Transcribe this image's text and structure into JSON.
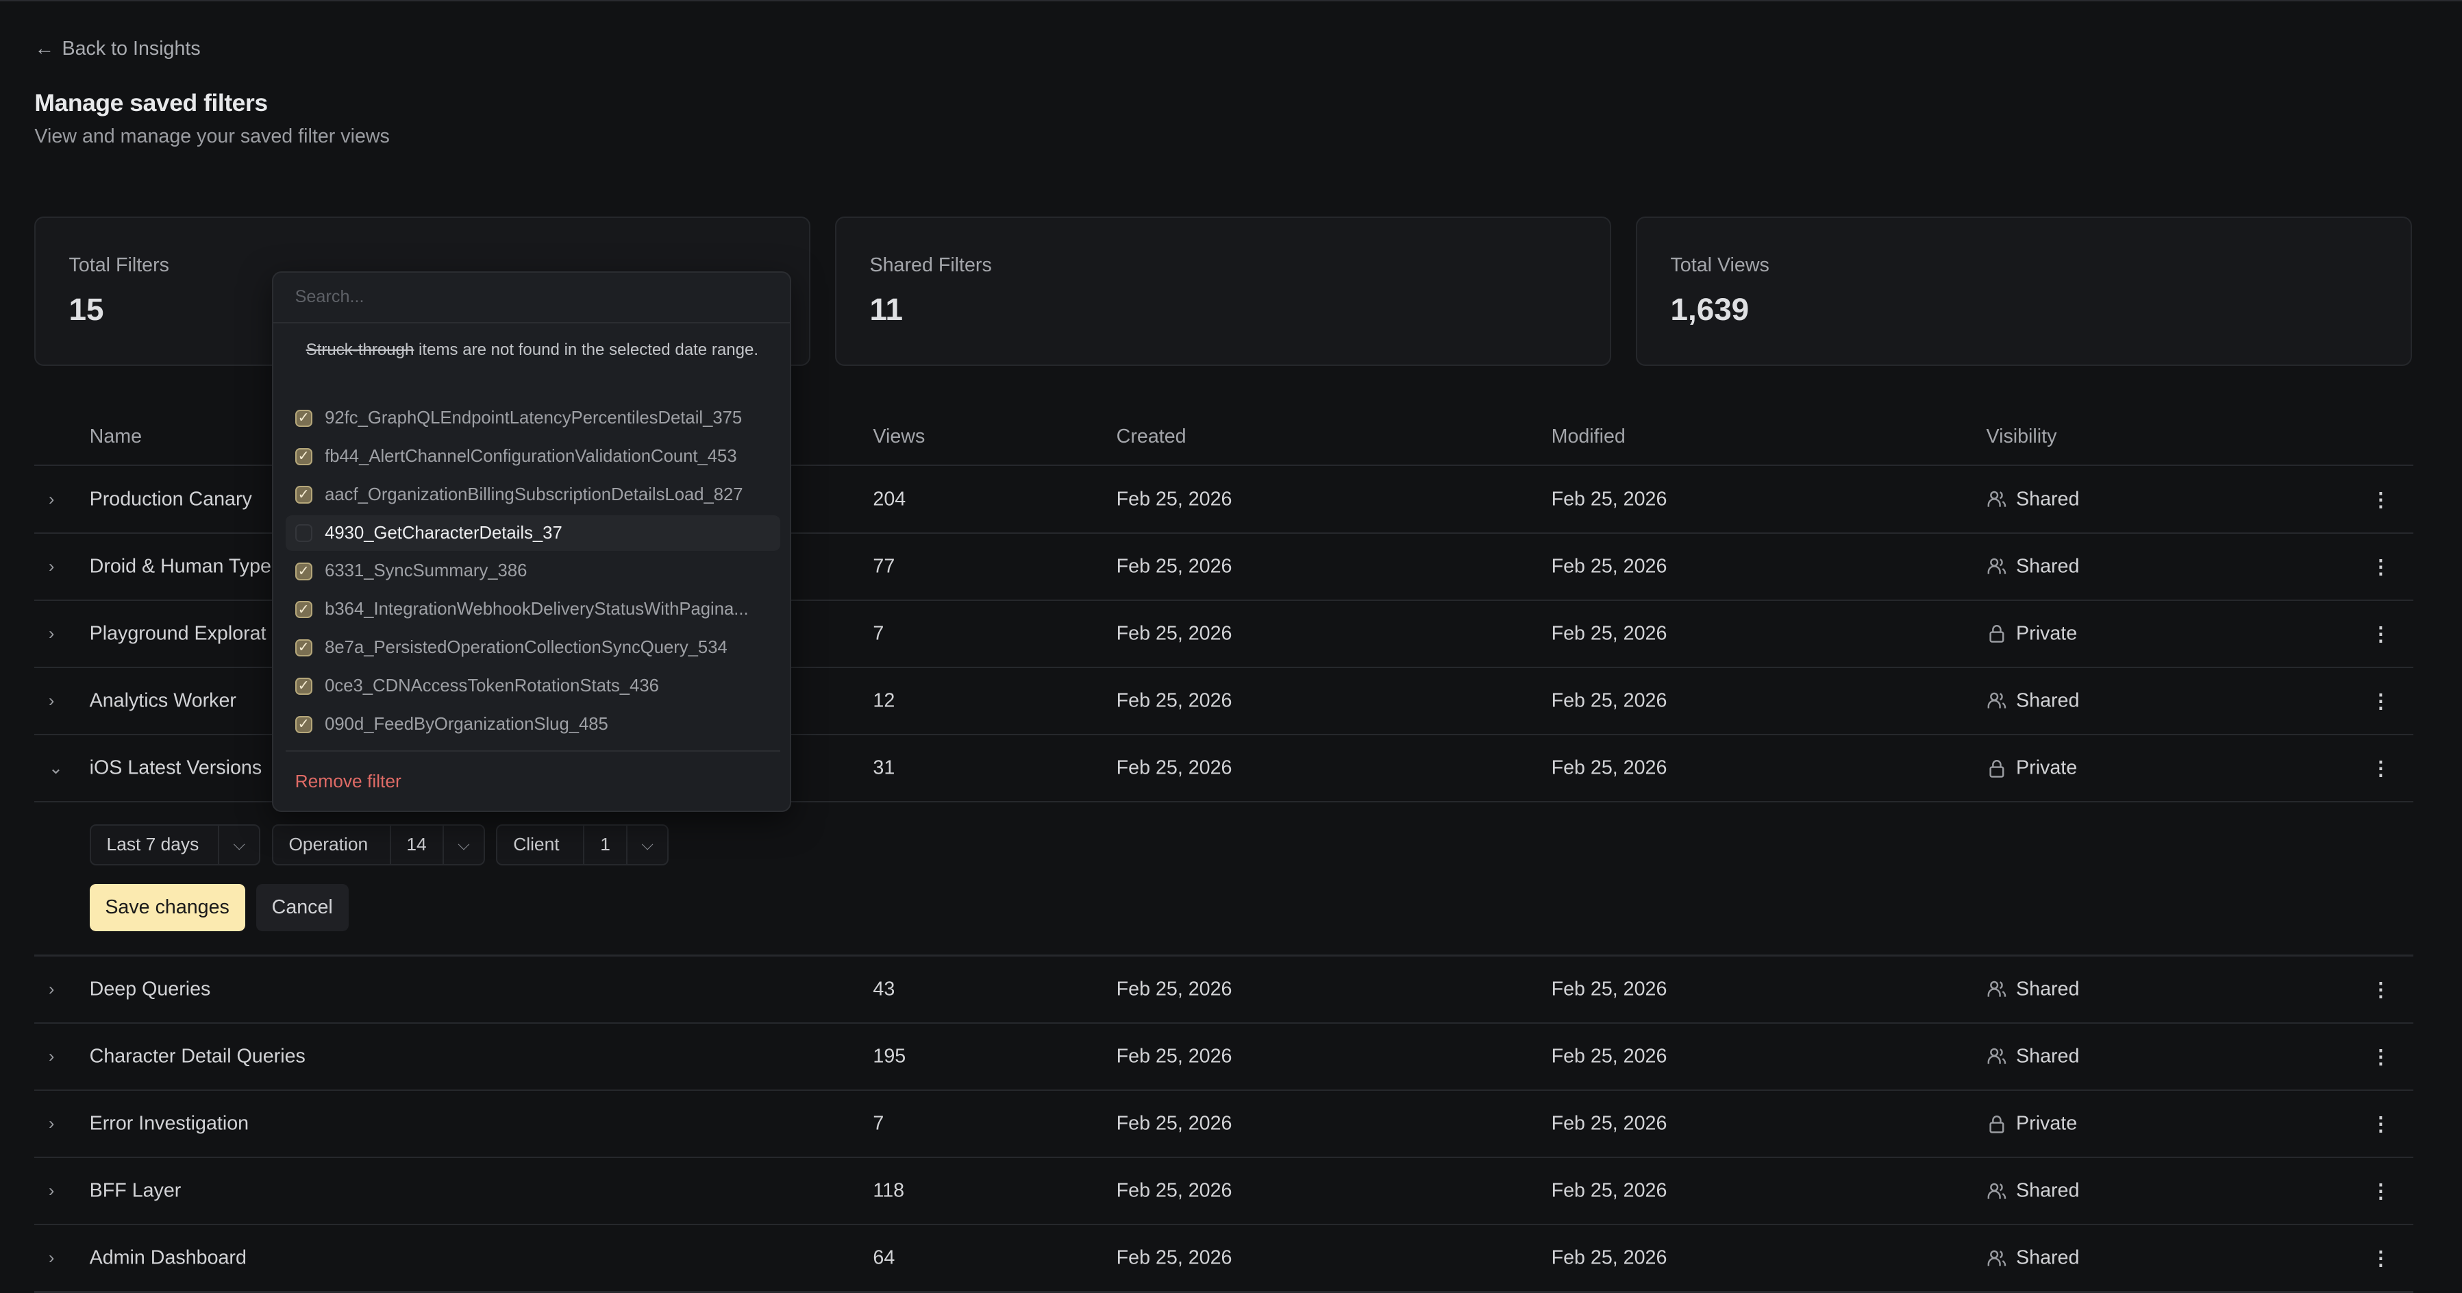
{
  "back_link": "Back to Insights",
  "page_title": "Manage saved filters",
  "page_subtitle": "View and manage your saved filter views",
  "stats": [
    {
      "label": "Total Filters",
      "value": "15"
    },
    {
      "label": "Shared Filters",
      "value": "11"
    },
    {
      "label": "Total Views",
      "value": "1,639"
    }
  ],
  "table": {
    "headers": {
      "name": "Name",
      "views": "Views",
      "created": "Created",
      "modified": "Modified",
      "visibility": "Visibility"
    },
    "rows_top": [
      {
        "name": "Production Canary",
        "views": "204",
        "created": "Feb 25, 2026",
        "modified": "Feb 25, 2026",
        "visibility": "Shared"
      },
      {
        "name": "Droid & Human Type",
        "views": "77",
        "created": "Feb 25, 2026",
        "modified": "Feb 25, 2026",
        "visibility": "Shared"
      },
      {
        "name": "Playground Explorat",
        "views": "7",
        "created": "Feb 25, 2026",
        "modified": "Feb 25, 2026",
        "visibility": "Private"
      },
      {
        "name": "Analytics Worker",
        "views": "12",
        "created": "Feb 25, 2026",
        "modified": "Feb 25, 2026",
        "visibility": "Shared"
      },
      {
        "name": "iOS Latest Versions",
        "views": "31",
        "created": "Feb 25, 2026",
        "modified": "Feb 25, 2026",
        "visibility": "Private",
        "expanded": true
      }
    ],
    "rows_bottom": [
      {
        "name": "Deep Queries",
        "views": "43",
        "created": "Feb 25, 2026",
        "modified": "Feb 25, 2026",
        "visibility": "Shared"
      },
      {
        "name": "Character Detail Queries",
        "views": "195",
        "created": "Feb 25, 2026",
        "modified": "Feb 25, 2026",
        "visibility": "Shared"
      },
      {
        "name": "Error Investigation",
        "views": "7",
        "created": "Feb 25, 2026",
        "modified": "Feb 25, 2026",
        "visibility": "Private"
      },
      {
        "name": "BFF Layer",
        "views": "118",
        "created": "Feb 25, 2026",
        "modified": "Feb 25, 2026",
        "visibility": "Shared"
      },
      {
        "name": "Admin Dashboard",
        "views": "64",
        "created": "Feb 25, 2026",
        "modified": "Feb 25, 2026",
        "visibility": "Shared"
      }
    ]
  },
  "editor": {
    "date_range": "Last 7 days",
    "operation_label": "Operation",
    "operation_count": "14",
    "client_label": "Client",
    "client_count": "1",
    "save_label": "Save changes",
    "cancel_label": "Cancel"
  },
  "popup": {
    "search_placeholder": "Search...",
    "note_strike": "Struck-through",
    "note_rest": " items are not found in the selected date range.",
    "items": [
      {
        "label": "92fc_GraphQLEndpointLatencyPercentilesDetail_375",
        "checked": true
      },
      {
        "label": "fb44_AlertChannelConfigurationValidationCount_453",
        "checked": true
      },
      {
        "label": "aacf_OrganizationBillingSubscriptionDetailsLoad_827",
        "checked": true
      },
      {
        "label": "4930_GetCharacterDetails_37",
        "checked": false,
        "highlighted": true
      },
      {
        "label": "6331_SyncSummary_386",
        "checked": true
      },
      {
        "label": "b364_IntegrationWebhookDeliveryStatusWithPagina...",
        "checked": true
      },
      {
        "label": "8e7a_PersistedOperationCollectionSyncQuery_534",
        "checked": true
      },
      {
        "label": "0ce3_CDNAccessTokenRotationStats_436",
        "checked": true
      },
      {
        "label": "090d_FeedByOrganizationSlug_485",
        "checked": true
      }
    ],
    "remove_label": "Remove filter"
  },
  "colors": {
    "background": "#111214",
    "accent_button": "#fbeab0",
    "danger": "#e06b66",
    "checkbox": "#7a6f52"
  }
}
